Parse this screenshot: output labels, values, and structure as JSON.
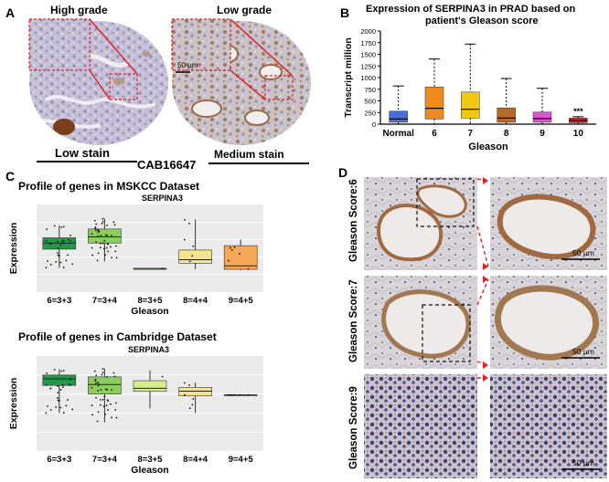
{
  "panels": {
    "A": {
      "letter": "A",
      "label_high": "High grade",
      "label_low": "Low grade",
      "scale": "50 μm",
      "stain_low": "Low stain",
      "stain_medium": "Medium stain",
      "antibody": "CAB16647"
    },
    "B": {
      "letter": "B",
      "title_line1": "Expression of SERPINA3 in PRAD based on",
      "title_line2": "patient's Gleason score",
      "ylabel": "Transcript million",
      "xlabel": "Gleason",
      "yticks": [
        "0",
        "250",
        "500",
        "750",
        "1000",
        "1250",
        "1500",
        "1750",
        "2000"
      ],
      "significance": "***"
    },
    "C": {
      "letter": "C",
      "msk_title": "Profile of genes in MSKCC Dataset",
      "msk_gene": "SERPINA3",
      "cam_title": "Profile of genes in Cambridge Dataset",
      "cam_gene": "SERPINA3",
      "ylabel": "Expression",
      "xlabel": "Gleason"
    },
    "D": {
      "letter": "D",
      "row_labels": [
        "Gleason Score:6",
        "Gleason Score:7",
        "Gleason Score:9"
      ],
      "scale": "50 μm"
    }
  },
  "chart_data": [
    {
      "id": "B",
      "type": "box",
      "title": "Expression of SERPINA3 in PRAD based on patient's Gleason score",
      "xlabel": "Gleason",
      "ylabel": "Transcript million",
      "ylim": [
        0,
        2000
      ],
      "categories": [
        "Normal",
        "6",
        "7",
        "8",
        "9",
        "10"
      ],
      "colors": [
        "#4a6cd6",
        "#ef8a1c",
        "#f2c80f",
        "#b56b27",
        "#e052d6",
        "#d8202a"
      ],
      "whisker_low": [
        0,
        0,
        0,
        0,
        0,
        0
      ],
      "q1": [
        40,
        110,
        130,
        40,
        40,
        30
      ],
      "median": [
        110,
        340,
        320,
        130,
        120,
        80
      ],
      "q3": [
        280,
        800,
        690,
        350,
        260,
        130
      ],
      "whisker_high": [
        820,
        1400,
        1720,
        980,
        770,
        160
      ]
    },
    {
      "id": "C-MSKCC",
      "type": "box",
      "title": "Profile of genes in MSKCC Dataset",
      "subtitle": "SERPINA3",
      "xlabel": "Gleason",
      "ylabel": "Expression",
      "ylim": [
        0,
        10
      ],
      "categories": [
        "6=3+3",
        "7=3+4",
        "8=3+5",
        "8=4+4",
        "9=4+5"
      ],
      "colors": [
        "#1e9a48",
        "#8ccd5c",
        "#8ccd5c",
        "#f4e48b",
        "#f5a855"
      ],
      "whisker_low": [
        2.8,
        3.5,
        2.7,
        2.6,
        2.5
      ],
      "q1": [
        4.9,
        5.6,
        2.7,
        3.3,
        2.6
      ],
      "median": [
        5.6,
        6.3,
        2.7,
        3.7,
        3.0
      ],
      "q3": [
        6.2,
        7.2,
        2.7,
        4.8,
        5.3
      ],
      "whisker_high": [
        7.6,
        8.4,
        2.7,
        8.3,
        6.0
      ]
    },
    {
      "id": "C-Cambridge",
      "type": "box",
      "title": "Profile of genes in Cambridge Dataset",
      "subtitle": "SERPINA3",
      "xlabel": "Gleason",
      "ylabel": "Expression",
      "ylim": [
        0,
        10
      ],
      "categories": [
        "6=3+3",
        "7=3+4",
        "8=3+5",
        "8=4+4",
        "9=4+5"
      ],
      "colors": [
        "#1e9a48",
        "#8ccd5c",
        "#d6ec8e",
        "#f4e48b",
        "#f4e48b"
      ],
      "whisker_low": [
        4.0,
        3.0,
        4.5,
        4.0,
        5.9
      ],
      "q1": [
        6.9,
        6.0,
        6.3,
        5.8,
        5.9
      ],
      "median": [
        7.6,
        7.0,
        6.6,
        6.3,
        5.9
      ],
      "q3": [
        8.0,
        7.8,
        7.4,
        6.7,
        5.9
      ],
      "whisker_high": [
        8.6,
        8.7,
        8.5,
        7.2,
        5.9
      ]
    }
  ]
}
